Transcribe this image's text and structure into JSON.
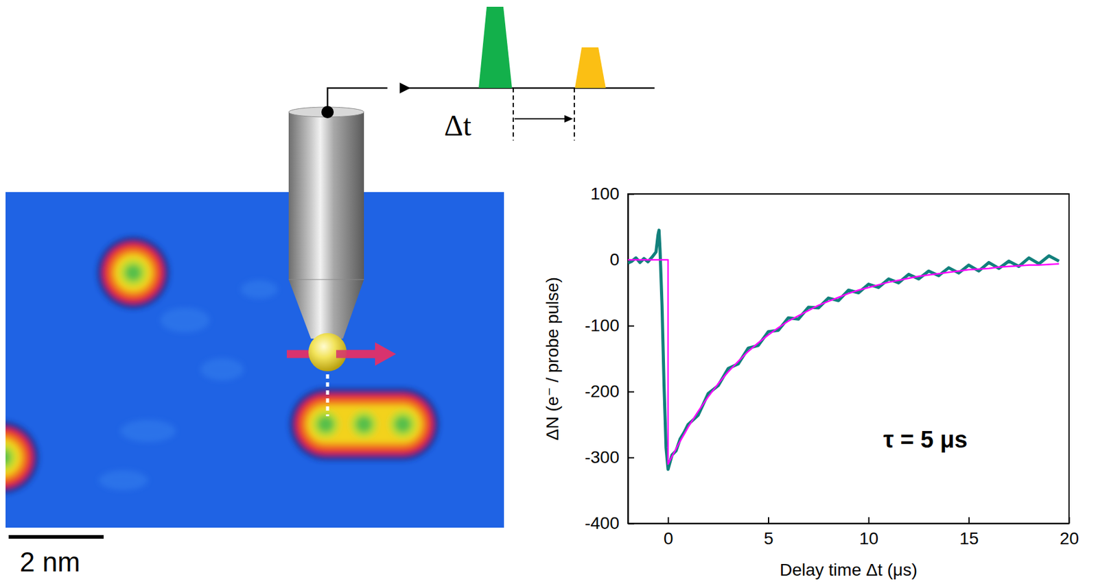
{
  "chart_data": {
    "type": "line",
    "x_label": "Delay time Δt (μs)",
    "y_label": "ΔN (e⁻ / probe pulse)",
    "annotation": "τ = 5 μs",
    "xlim": [
      -2,
      20
    ],
    "ylim": [
      -400,
      100
    ],
    "xticks": [
      0,
      5,
      10,
      15,
      20
    ],
    "yticks": [
      -400,
      -300,
      -200,
      -100,
      0,
      100
    ],
    "series": [
      {
        "color": "#12807c",
        "line_style": "solid",
        "x": [
          -2,
          -1.8,
          -1.6,
          -1.4,
          -1.2,
          -1,
          -0.8,
          -0.6,
          -0.5,
          -0.45,
          -0.4,
          -0.3,
          -0.2,
          -0.1,
          0,
          0.2,
          0.4,
          0.6,
          0.8,
          1,
          1.5,
          2,
          2.5,
          3,
          3.5,
          4,
          4.5,
          5,
          5.5,
          6,
          6.5,
          7,
          7.5,
          8,
          8.5,
          9,
          9.5,
          10,
          10.5,
          11,
          11.5,
          12,
          12.5,
          13,
          13.5,
          14,
          14.5,
          15,
          15.5,
          16,
          16.5,
          17,
          17.5,
          18,
          18.5,
          19,
          19.5
        ],
        "values": [
          -5,
          -2,
          3,
          -4,
          2,
          -3,
          4,
          12,
          38,
          45,
          15,
          -70,
          -190,
          -285,
          -318,
          -296,
          -290,
          -272,
          -262,
          -250,
          -236,
          -203,
          -191,
          -165,
          -158,
          -134,
          -130,
          -109,
          -107,
          -88,
          -90,
          -72,
          -73,
          -58,
          -62,
          -46,
          -50,
          -37,
          -42,
          -29,
          -35,
          -22,
          -29,
          -17,
          -24,
          -12,
          -20,
          -8,
          -17,
          -4,
          -13,
          -2,
          -10,
          3,
          -6,
          6,
          -2
        ]
      },
      {
        "color": "#ff00ff",
        "line_style": "solid",
        "x": [
          -2,
          0,
          0,
          0.5,
          1,
          1.5,
          2,
          2.5,
          3,
          3.5,
          4,
          4.5,
          5,
          5.5,
          6,
          6.5,
          7,
          7.5,
          8,
          8.5,
          9,
          9.5,
          10,
          10.5,
          11,
          11.5,
          12,
          12.5,
          13,
          13.5,
          14,
          14.5,
          15,
          15.5,
          16,
          16.5,
          17,
          17.5,
          18,
          18.5,
          19,
          19.5
        ],
        "values": [
          0,
          0,
          -310,
          -281,
          -254,
          -230,
          -208,
          -188,
          -170,
          -154,
          -139,
          -126,
          -114,
          -103,
          -93,
          -85,
          -77,
          -69,
          -63,
          -57,
          -51,
          -46,
          -42,
          -38,
          -34,
          -31,
          -28,
          -25,
          -23,
          -21,
          -19,
          -17,
          -15,
          -14,
          -13,
          -11,
          -10,
          -9,
          -8,
          -8,
          -7,
          -6
        ]
      }
    ]
  },
  "diagram": {
    "scale_bar": "2 nm",
    "delay_label": "Δt"
  }
}
